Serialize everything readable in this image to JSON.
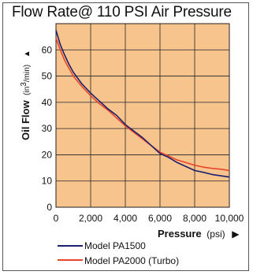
{
  "chart_data": {
    "type": "line",
    "title": "Flow Rate@ 110 PSI Air Pressure",
    "ylabel": {
      "main": "Oil Flow",
      "unit_prefix": "(in",
      "unit_sup": "3",
      "unit_suffix": "/min)",
      "arrow": "▲"
    },
    "xlabel": {
      "main": "Pressure",
      "unit": "(psi)",
      "arrow": "▶"
    },
    "xlim": [
      0,
      10000
    ],
    "ylim": [
      0,
      70
    ],
    "xticks": [
      0,
      2000,
      4000,
      6000,
      8000,
      10000
    ],
    "xtick_labels": [
      "0",
      "2,000",
      "4,000",
      "6,000",
      "8,000",
      "10,000"
    ],
    "yticks": [
      0,
      10,
      20,
      30,
      40,
      50,
      60
    ],
    "ytick_labels": [
      "0",
      "10",
      "20",
      "30",
      "40",
      "50",
      "60"
    ],
    "grid": true,
    "plot_background": "#f8c48e",
    "legend_position": "bottom",
    "series": [
      {
        "name": "Model PA1500",
        "color": "#1a1f6e",
        "x": [
          0,
          250,
          500,
          750,
          1000,
          1500,
          2000,
          2500,
          3000,
          3500,
          4000,
          4500,
          5000,
          5500,
          6000,
          6500,
          7000,
          7500,
          8000,
          8500,
          9000,
          9500,
          10000
        ],
        "y": [
          67.5,
          62,
          58,
          54.5,
          51.5,
          47,
          43.5,
          40.5,
          37.5,
          35,
          31.5,
          29,
          26.5,
          23.5,
          20.5,
          19,
          17,
          15.5,
          14,
          13.3,
          12.5,
          12,
          11.5
        ]
      },
      {
        "name": "Model PA2000 (Turbo)",
        "color": "#e8462a",
        "x": [
          0,
          250,
          500,
          750,
          1000,
          1500,
          2000,
          2500,
          3000,
          3500,
          4000,
          4500,
          5000,
          5500,
          6000,
          6500,
          7000,
          7500,
          8000,
          8500,
          9000,
          9500,
          10000
        ],
        "y": [
          64.5,
          60,
          56,
          53,
          50,
          46,
          42.5,
          39.5,
          37,
          34,
          31,
          28.5,
          26,
          23.5,
          21,
          19.5,
          18,
          17,
          16,
          15.3,
          14.8,
          14.5,
          14
        ]
      }
    ]
  }
}
